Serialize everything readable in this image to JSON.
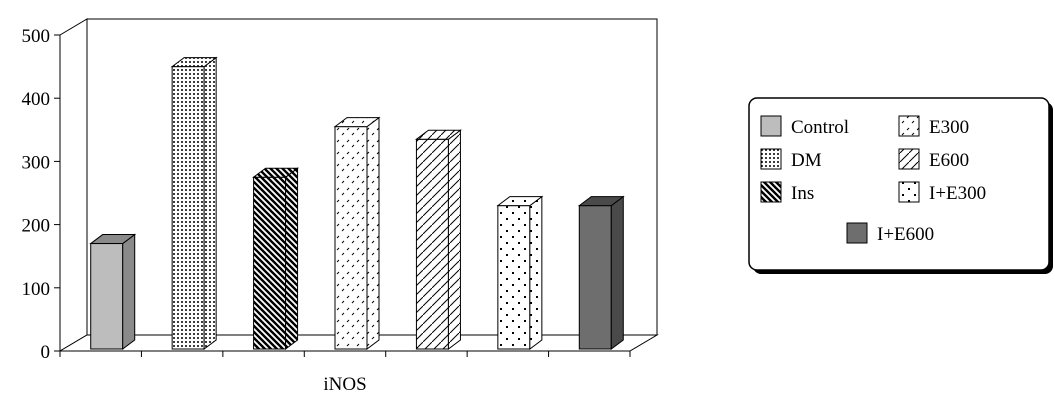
{
  "chart_data": {
    "type": "bar",
    "style": "3d",
    "categories": [
      "Control",
      "DM",
      "Ins",
      "E300",
      "E600",
      "I+E300",
      "I+E600"
    ],
    "values": [
      170,
      450,
      275,
      355,
      335,
      230,
      230
    ],
    "xlabel": "iNOS",
    "ylabel": "",
    "ylim": [
      0,
      500
    ],
    "yticks": [
      0,
      100,
      200,
      300,
      400,
      500
    ],
    "grid": "horizontal-dotted",
    "legend_position": "right",
    "legend": [
      {
        "label": "Control",
        "pattern": "solid-light-gray",
        "color": "#bdbdbd"
      },
      {
        "label": "E300",
        "pattern": "sparse-dashes",
        "color": "#ffffff"
      },
      {
        "label": "DM",
        "pattern": "dense-dots",
        "color": "#ffffff"
      },
      {
        "label": "E600",
        "pattern": "diagonal-lines",
        "color": "#ffffff"
      },
      {
        "label": "Ins",
        "pattern": "diagonal-stripes-bold",
        "color": "#ffffff"
      },
      {
        "label": "I+E300",
        "pattern": "scattered-dots",
        "color": "#ffffff"
      },
      {
        "label": "I+E600",
        "pattern": "solid-dark-gray",
        "color": "#6e6e6e"
      }
    ]
  }
}
